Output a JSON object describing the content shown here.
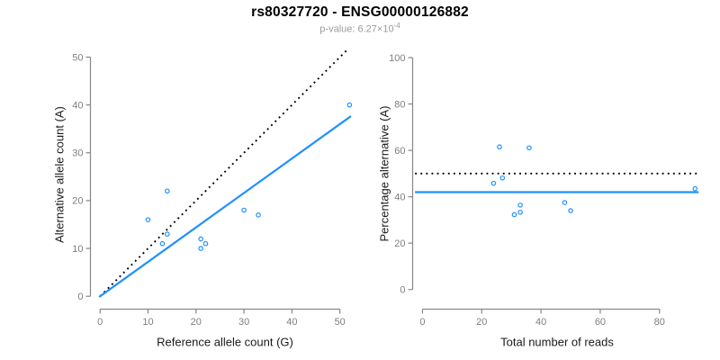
{
  "header": {
    "title": "rs80327720 - ENSG00000126882",
    "subtitle_prefix": "p-value: 6.27×10",
    "subtitle_exponent": "-4"
  },
  "colors": {
    "accent_blue": "#1E90FF",
    "reference_line": "#000000",
    "axis": "#878787",
    "tick_label": "#7f7f7f",
    "subtitle": "#9b9b9b",
    "axis_title": "#1a1a1a"
  },
  "chart_data": [
    {
      "type": "scatter",
      "panel": "left",
      "xlabel": "Reference allele count (G)",
      "ylabel": "Alternative allele count (A)",
      "xlim": [
        0,
        52
      ],
      "ylim": [
        0,
        52
      ],
      "x_ticks": [
        0,
        10,
        20,
        30,
        40,
        50
      ],
      "y_ticks": [
        0,
        10,
        20,
        30,
        40,
        50
      ],
      "grid": false,
      "points": [
        [
          10,
          16
        ],
        [
          14,
          22
        ],
        [
          13,
          11
        ],
        [
          14,
          13
        ],
        [
          21,
          12
        ],
        [
          22,
          11
        ],
        [
          21,
          10
        ],
        [
          30,
          18
        ],
        [
          33,
          17
        ],
        [
          52,
          40
        ]
      ],
      "lines": [
        {
          "name": "identity-line",
          "style": "dotted",
          "color": "#000000",
          "slope": 1,
          "intercept": 0,
          "x_range": [
            0,
            51.6
          ]
        },
        {
          "name": "fit-line",
          "style": "solid",
          "color": "#1E90FF",
          "slope": 0.72,
          "intercept": 0,
          "x_range": [
            -0.2,
            52.3
          ]
        }
      ]
    },
    {
      "type": "scatter",
      "panel": "right",
      "xlabel": "Total number of reads",
      "ylabel": "Percentage alternative (A)",
      "xlim": [
        0,
        93
      ],
      "ylim": [
        0,
        100
      ],
      "x_ticks": [
        0,
        20,
        40,
        60,
        80
      ],
      "y_ticks": [
        0,
        20,
        40,
        60,
        80,
        100
      ],
      "grid": false,
      "points": [
        [
          26,
          61.5
        ],
        [
          36,
          61.1
        ],
        [
          24,
          45.8
        ],
        [
          27,
          48.1
        ],
        [
          33,
          36.4
        ],
        [
          33,
          33.3
        ],
        [
          31,
          32.3
        ],
        [
          48,
          37.5
        ],
        [
          50,
          34
        ],
        [
          92,
          43.5
        ]
      ],
      "lines": [
        {
          "name": "fifty-percent-line",
          "style": "dotted",
          "color": "#000000",
          "y": 50,
          "x_range": [
            -2.5,
            93.2
          ]
        },
        {
          "name": "mean-percentage-line",
          "style": "solid",
          "color": "#1E90FF",
          "y": 42,
          "x_range": [
            -2.5,
            93.2
          ]
        }
      ]
    }
  ]
}
